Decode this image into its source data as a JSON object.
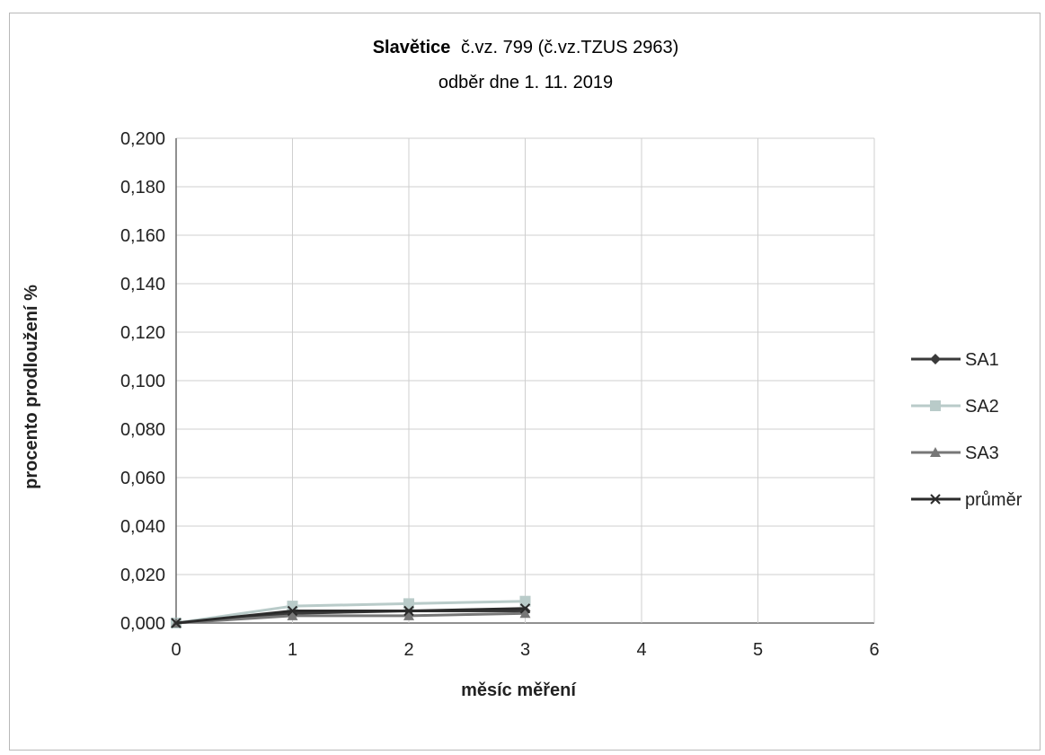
{
  "chart_data": {
    "type": "line",
    "title_bold": "Slavětice",
    "title_rest": "č.vz. 799 (č.vz.TZUS 2963)",
    "subtitle": "odběr dne 1. 11. 2019",
    "xlabel": "měsíc měření",
    "ylabel": "procento prodloužení %",
    "xlim": [
      0,
      6
    ],
    "ylim": [
      0,
      0.2
    ],
    "x_ticks": [
      "0",
      "1",
      "2",
      "3",
      "4",
      "5",
      "6"
    ],
    "y_ticks": [
      "0,000",
      "0,020",
      "0,040",
      "0,060",
      "0,080",
      "0,100",
      "0,120",
      "0,140",
      "0,160",
      "0,180",
      "0,200"
    ],
    "grid": true,
    "legend_position": "right",
    "series": [
      {
        "name": "SA1",
        "color": "#3a3a3a",
        "marker": "diamond",
        "x": [
          0,
          1,
          2,
          3
        ],
        "y": [
          0.0,
          0.004,
          0.005,
          0.005
        ]
      },
      {
        "name": "SA2",
        "color": "#b9cbc9",
        "marker": "square",
        "x": [
          0,
          1,
          2,
          3
        ],
        "y": [
          0.0,
          0.007,
          0.008,
          0.009
        ]
      },
      {
        "name": "SA3",
        "color": "#777777",
        "marker": "triangle",
        "x": [
          0,
          1,
          2,
          3
        ],
        "y": [
          0.0,
          0.003,
          0.003,
          0.004
        ]
      },
      {
        "name": "průměr",
        "color": "#2b2b2b",
        "marker": "x",
        "x": [
          0,
          1,
          2,
          3
        ],
        "y": [
          0.0,
          0.005,
          0.005,
          0.006
        ]
      }
    ]
  }
}
